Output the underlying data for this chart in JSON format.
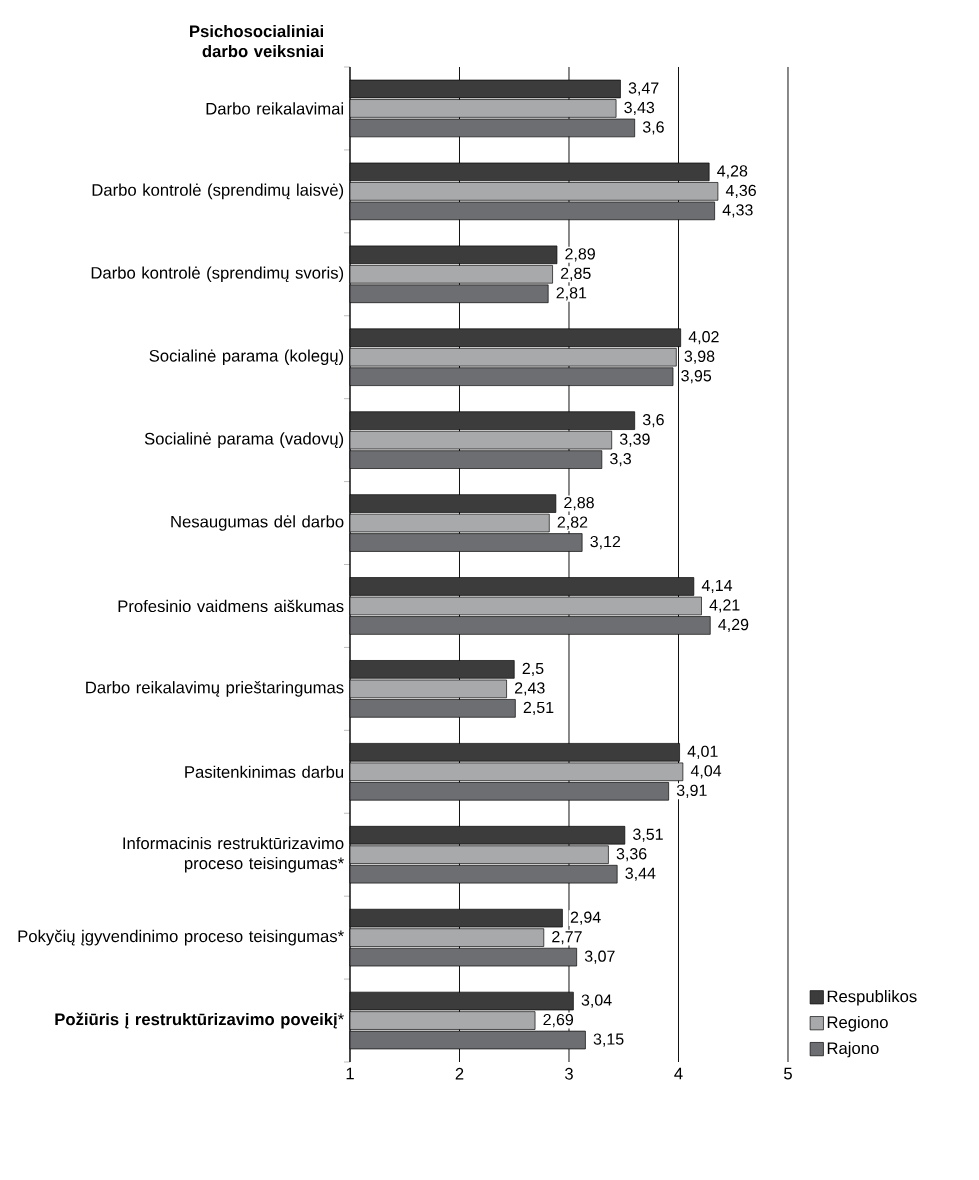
{
  "chart_data": {
    "type": "bar",
    "orientation": "horizontal",
    "ylabel": "Psichosocialiniai darbo veiksniai",
    "categories": [
      "Darbo reikalavimai",
      "Darbo kontrolė (sprendimų laisvė)",
      "Darbo kontrolė (sprendimų svoris)",
      "Socialinė parama (kolegų)",
      "Socialinė parama (vadovų)",
      "Nesaugumas dėl darbo",
      "Profesinio vaidmens aiškumas",
      "Darbo reikalavimų prieštaringumas",
      "Pasitenkinimas darbu",
      "Informacinis restruktūrizavimo proceso teisingumas*",
      "Pokyčių įgyvendinimo proceso teisingumas*",
      "**Požiūris į restruktūrizavimo poveikį***"
    ],
    "series": [
      {
        "name": "Respublikos",
        "color": "#3c3c3c",
        "values": [
          3.47,
          4.28,
          2.89,
          4.02,
          3.6,
          2.88,
          4.14,
          2.5,
          4.01,
          3.51,
          2.94,
          3.04
        ],
        "value_labels": [
          "3,47",
          "4,28",
          "2,89",
          "4,02",
          "3,6",
          "2,88",
          "4,14",
          "2,5",
          "4,01",
          "3,51",
          "2,94",
          "3,04"
        ]
      },
      {
        "name": "Regiono",
        "color": "#a8a9ab",
        "values": [
          3.43,
          4.36,
          2.85,
          3.98,
          3.39,
          2.82,
          4.21,
          2.43,
          4.04,
          3.36,
          2.77,
          2.69
        ],
        "value_labels": [
          "3,43",
          "4,36",
          "2,85",
          "3,98",
          "3,39",
          "2,82",
          "4,21",
          "2,43",
          "4,04",
          "3,36",
          "2,77",
          "2,69"
        ]
      },
      {
        "name": "Rajono",
        "color": "#6d6e71",
        "values": [
          3.6,
          4.33,
          2.81,
          3.95,
          3.3,
          3.12,
          4.29,
          2.51,
          3.91,
          3.44,
          3.07,
          3.15
        ],
        "value_labels": [
          "3,6",
          "4,33",
          "2,81",
          "3,95",
          "3,3",
          "3,12",
          "4,29",
          "2,51",
          "3,91",
          "3,44",
          "3,07",
          "3,15"
        ]
      }
    ],
    "xlim": [
      1,
      5
    ],
    "xticks": [
      1,
      2,
      3,
      4,
      5
    ],
    "grid": "x",
    "legend": "bottom right"
  }
}
